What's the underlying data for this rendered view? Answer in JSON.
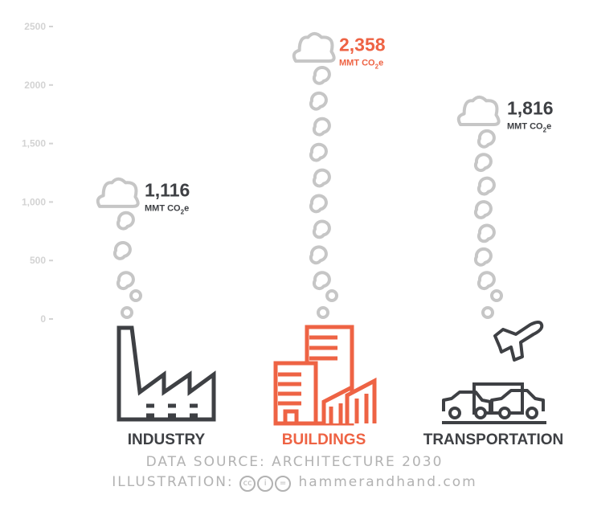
{
  "chart_data": {
    "type": "bar",
    "categories": [
      "INDUSTRY",
      "BUILDINGS",
      "TRANSPORTATION"
    ],
    "values": [
      1116,
      2358,
      1816
    ],
    "value_labels": [
      "1,116",
      "2,358",
      "1,816"
    ],
    "unit": "MMT CO2e",
    "unit_prefix": "MMT CO",
    "unit_sub": "2",
    "unit_suffix": "e",
    "y_ticks": [
      0,
      500,
      1000,
      1500,
      2000,
      2500
    ],
    "y_tick_labels": [
      "0",
      "500",
      "1,000",
      "1,500",
      "2000",
      "2500"
    ],
    "ylim": [
      0,
      2500
    ],
    "grid": false,
    "highlight_category": "BUILDINGS"
  },
  "colors": {
    "highlight": "#ee6344",
    "dark": "#3e4044",
    "smoke": "#c6c6c6",
    "axis": "#d3d3d3",
    "footer": "#b2b2b2"
  },
  "icons": [
    "factory-icon",
    "buildings-icon",
    "airplane-icon",
    "car-icon",
    "truck-icon",
    "cloud-icon",
    "creative-commons-icon"
  ],
  "footer": {
    "source": "DATA SOURCE: ARCHITECTURE 2030",
    "credit_prefix": "ILLUSTRATION:",
    "cc_marks": [
      "cc",
      "i",
      "="
    ],
    "credit_site": "hammerandhand.com"
  }
}
